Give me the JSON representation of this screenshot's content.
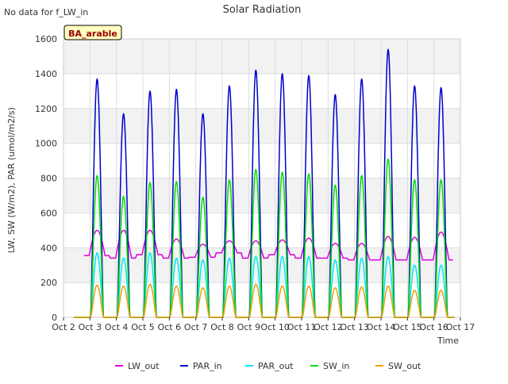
{
  "note": "No data for f_LW_in",
  "site_badge": "BA_arable",
  "chart_data": {
    "type": "line",
    "title": "Solar Radiation",
    "xlabel": "Time",
    "ylabel": "LW, SW (W/m2), PAR (umol/m2/s)",
    "xlim": [
      2,
      17
    ],
    "ylim": [
      0,
      1600
    ],
    "x_ticks": [
      2,
      3,
      4,
      5,
      6,
      7,
      8,
      9,
      10,
      11,
      12,
      13,
      14,
      15,
      16,
      17
    ],
    "x_tick_labels": [
      "Oct 2",
      "Oct 3",
      "Oct 4",
      "Oct 5",
      "Oct 6",
      "Oct 7",
      "Oct 8",
      "Oct 9",
      "Oct 10",
      "Oct 11",
      "Oct 12",
      "Oct 13",
      "Oct 14",
      "Oct 15",
      "Oct 16",
      "Oct 17"
    ],
    "y_ticks": [
      0,
      200,
      400,
      600,
      800,
      1000,
      1200,
      1400,
      1600
    ],
    "y_tick_labels": [
      "0",
      "200",
      "400",
      "600",
      "800",
      "1000",
      "1200",
      "1400",
      "1600"
    ],
    "grid": true,
    "legend_position": "bottom",
    "days": [
      3,
      4,
      5,
      6,
      7,
      8,
      9,
      10,
      11,
      12,
      13,
      14,
      15,
      16
    ],
    "solar_noon_offset": 0.27,
    "series": [
      {
        "name": "LW_out",
        "color": "#dd00dd",
        "kind": "longwave",
        "day_peaks": [
          500,
          500,
          500,
          450,
          420,
          440,
          440,
          445,
          455,
          425,
          425,
          465,
          460,
          490
        ],
        "night_values": [
          355,
          340,
          360,
          340,
          345,
          370,
          340,
          360,
          340,
          340,
          330,
          330,
          330,
          330
        ]
      },
      {
        "name": "PAR_in",
        "color": "#0000cc",
        "kind": "solar",
        "day_peaks": [
          1370,
          1170,
          1300,
          1310,
          1170,
          1330,
          1420,
          1400,
          1390,
          1280,
          1370,
          1540,
          1330,
          1320
        ]
      },
      {
        "name": "PAR_out",
        "color": "#00e5ff",
        "kind": "solar",
        "day_peaks": [
          370,
          340,
          370,
          340,
          330,
          340,
          350,
          350,
          350,
          330,
          340,
          350,
          300,
          300
        ]
      },
      {
        "name": "SW_in",
        "color": "#00e000",
        "kind": "solar",
        "day_peaks": [
          815,
          695,
          775,
          780,
          690,
          790,
          850,
          835,
          825,
          760,
          815,
          910,
          790,
          790
        ]
      },
      {
        "name": "SW_out",
        "color": "#ff9900",
        "kind": "solar",
        "day_peaks": [
          185,
          180,
          190,
          180,
          170,
          180,
          190,
          180,
          180,
          170,
          175,
          180,
          155,
          155
        ]
      }
    ]
  }
}
